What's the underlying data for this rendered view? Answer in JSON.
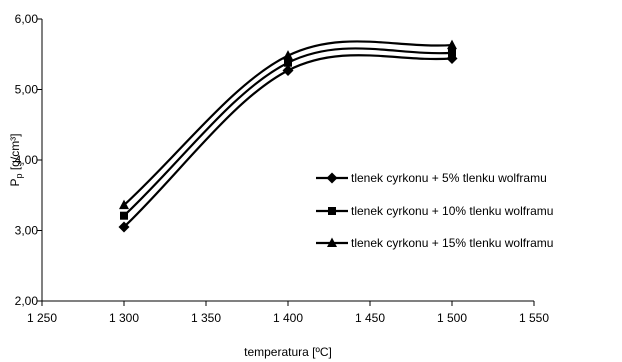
{
  "chart_data": {
    "type": "line",
    "title": "",
    "xlabel": "temperatura [ºC]",
    "ylabel_main": "P",
    "ylabel_sub": "p",
    "ylabel_unit": " [g/cm³]",
    "xlim": [
      1250,
      1550
    ],
    "ylim": [
      2.0,
      6.0
    ],
    "x_ticks": [
      1250,
      1300,
      1350,
      1400,
      1450,
      1500,
      1550
    ],
    "x_tick_labels": [
      "1 250",
      "1 300",
      "1 350",
      "1 400",
      "1 450",
      "1 500",
      "1 550"
    ],
    "y_ticks": [
      2.0,
      3.0,
      4.0,
      5.0,
      6.0
    ],
    "y_tick_labels": [
      "2,00",
      "3,00",
      "4,00",
      "5,00",
      "6,00"
    ],
    "grid": false,
    "legend_position": "right",
    "x": [
      1300,
      1400,
      1500
    ],
    "series": [
      {
        "name": "tlenek cyrkonu + 5% tlenku wolframu",
        "marker": "diamond",
        "values": [
          3.05,
          5.27,
          5.44
        ]
      },
      {
        "name": "tlenek cyrkonu + 10% tlenku wolframu",
        "marker": "square",
        "values": [
          3.21,
          5.38,
          5.52
        ]
      },
      {
        "name": "tlenek cyrkonu + 15% tlenku wolframu",
        "marker": "triangle",
        "values": [
          3.36,
          5.48,
          5.63
        ]
      }
    ],
    "colors": {
      "line": "#000000",
      "axis": "#000000",
      "background": "#ffffff"
    }
  }
}
